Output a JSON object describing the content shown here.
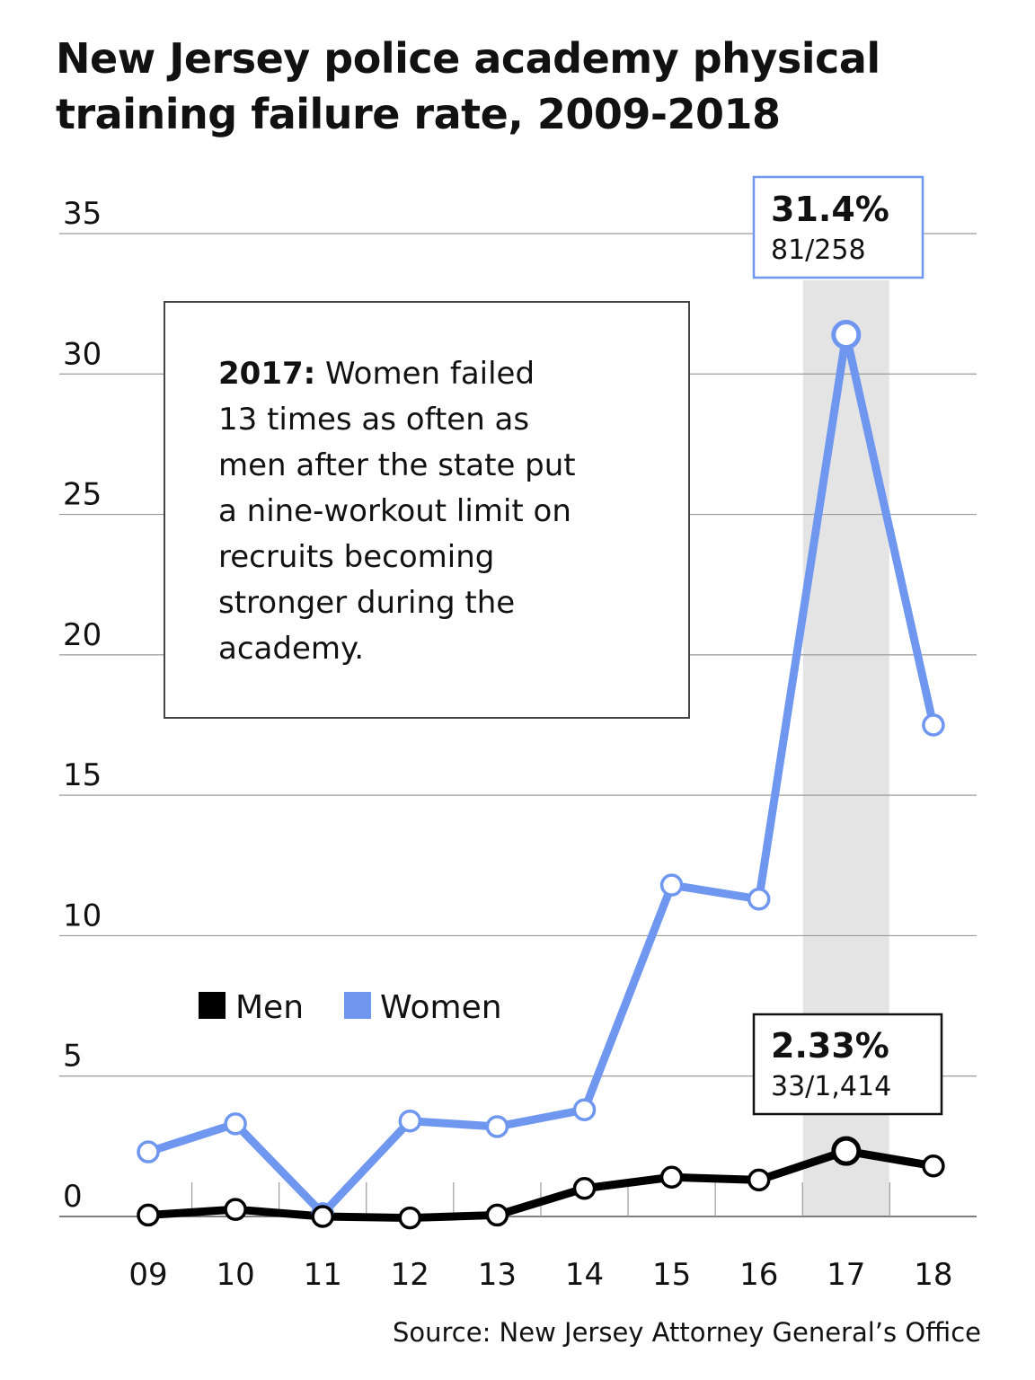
{
  "chart_data": {
    "type": "line",
    "title": "New Jersey police academy physical training failure rate, 2009-2018",
    "categories": [
      "09",
      "10",
      "11",
      "12",
      "13",
      "14",
      "15",
      "16",
      "17",
      "18"
    ],
    "ylim": [
      0,
      35
    ],
    "yticks": [
      "0",
      "5",
      "10",
      "15",
      "20",
      "25",
      "30",
      "35"
    ],
    "grid": true,
    "legend_placement": "lower-left",
    "series": [
      {
        "name": "Men",
        "color": "#000000",
        "values": [
          0.05,
          0.25,
          0.0,
          -0.05,
          0.05,
          1.0,
          1.4,
          1.3,
          2.33,
          1.8
        ]
      },
      {
        "name": "Women",
        "color": "#6f97f0",
        "values": [
          2.3,
          3.3,
          0.1,
          3.4,
          3.2,
          3.8,
          11.8,
          11.3,
          31.4,
          17.5
        ]
      }
    ],
    "highlight": {
      "category": "17",
      "color": "#e4e4e4"
    },
    "callouts": [
      {
        "series": "Women",
        "category": "17",
        "value": "31.4%",
        "detail": "81/258",
        "border": "#6f97f0"
      },
      {
        "series": "Men",
        "category": "17",
        "value": "2.33%",
        "detail": "33/1,414",
        "border": "#111111"
      }
    ],
    "annotation": {
      "lead": "2017:",
      "lines": [
        " Women failed",
        "13 times as often as",
        "men after the state put",
        "a nine-workout limit on",
        "recruits becoming",
        "stronger during the",
        "academy."
      ]
    }
  },
  "source": "Source: New Jersey Attorney General’s Office"
}
